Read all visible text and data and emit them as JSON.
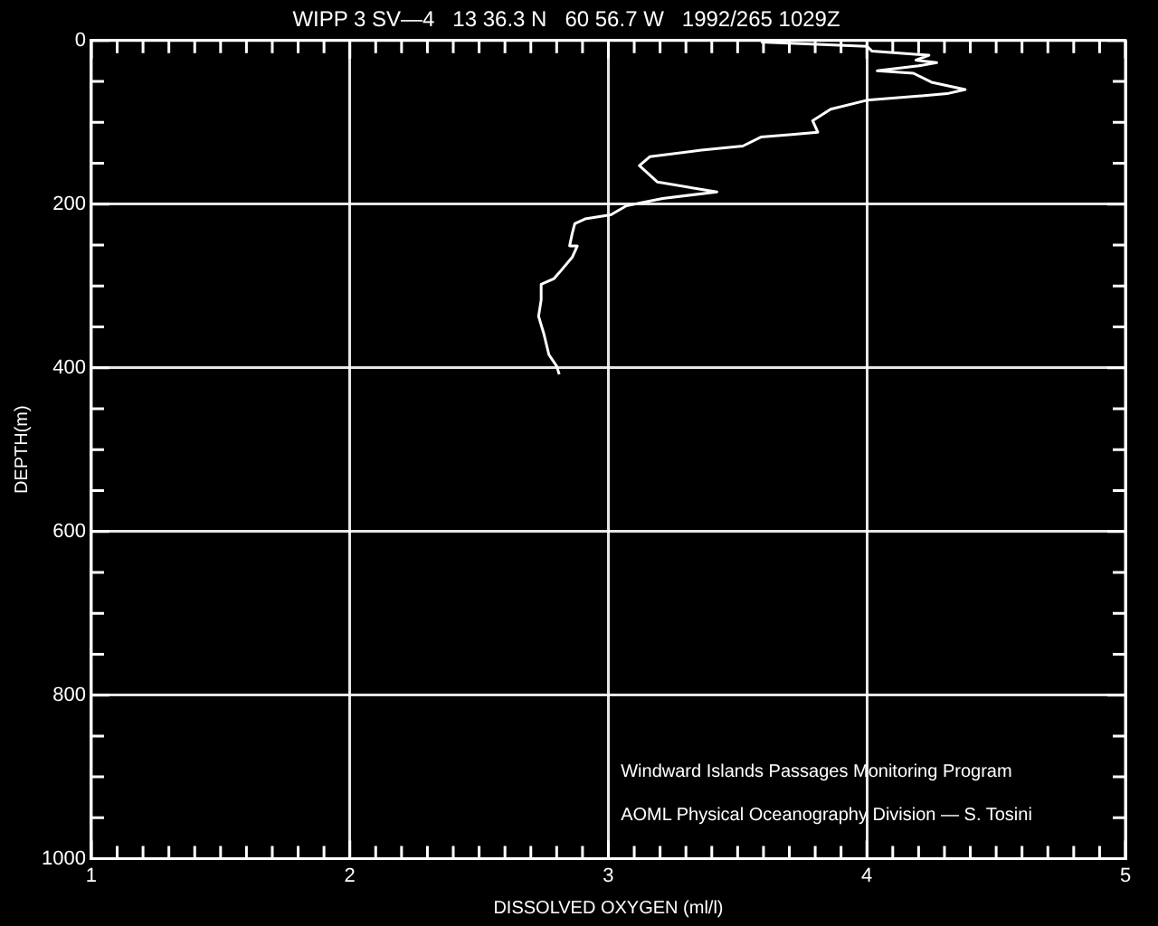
{
  "chart_data": {
    "type": "line",
    "title": "WIPP 3 SV—4   13 36.3 N   60 56.7 W   1992/265 1029Z",
    "xlabel": "DISSOLVED OXYGEN (ml/l)",
    "ylabel": "DEPTH(m)",
    "x": [
      3.59,
      4.0,
      4.02,
      4.24,
      4.19,
      4.27,
      4.2,
      4.04,
      4.18,
      4.25,
      4.38,
      4.31,
      4.0,
      3.86,
      3.79,
      3.81,
      3.71,
      3.59,
      3.52,
      3.36,
      3.16,
      3.12,
      3.19,
      3.42,
      3.21,
      3.07,
      3.01,
      2.91,
      2.87,
      2.86,
      2.85,
      2.88,
      2.86,
      2.82,
      2.79,
      2.74,
      2.74,
      2.73,
      2.75,
      2.77,
      2.8,
      2.81
    ],
    "series": [
      {
        "color": "#ffffff",
        "values": [
          2,
          7,
          13,
          18,
          24,
          27,
          31,
          37,
          40,
          51,
          60,
          65,
          73,
          84,
          98,
          112,
          115,
          118,
          129,
          134,
          142,
          153,
          173,
          185,
          193,
          202,
          213,
          218,
          224,
          236,
          251,
          251,
          265,
          280,
          291,
          298,
          317,
          337,
          358,
          384,
          398,
          408
        ]
      }
    ],
    "xlim": [
      1,
      5
    ],
    "ylim": [
      1000,
      0
    ],
    "xticks": [
      1,
      2,
      3,
      4,
      5
    ],
    "yticks": [
      0,
      200,
      400,
      600,
      800,
      1000
    ],
    "grid": true,
    "marker": "none",
    "line_style": "solid",
    "annotations": [
      "Windward Islands Passages Monitoring Program",
      "AOML Physical Oceanography Division — S. Tosini"
    ]
  }
}
